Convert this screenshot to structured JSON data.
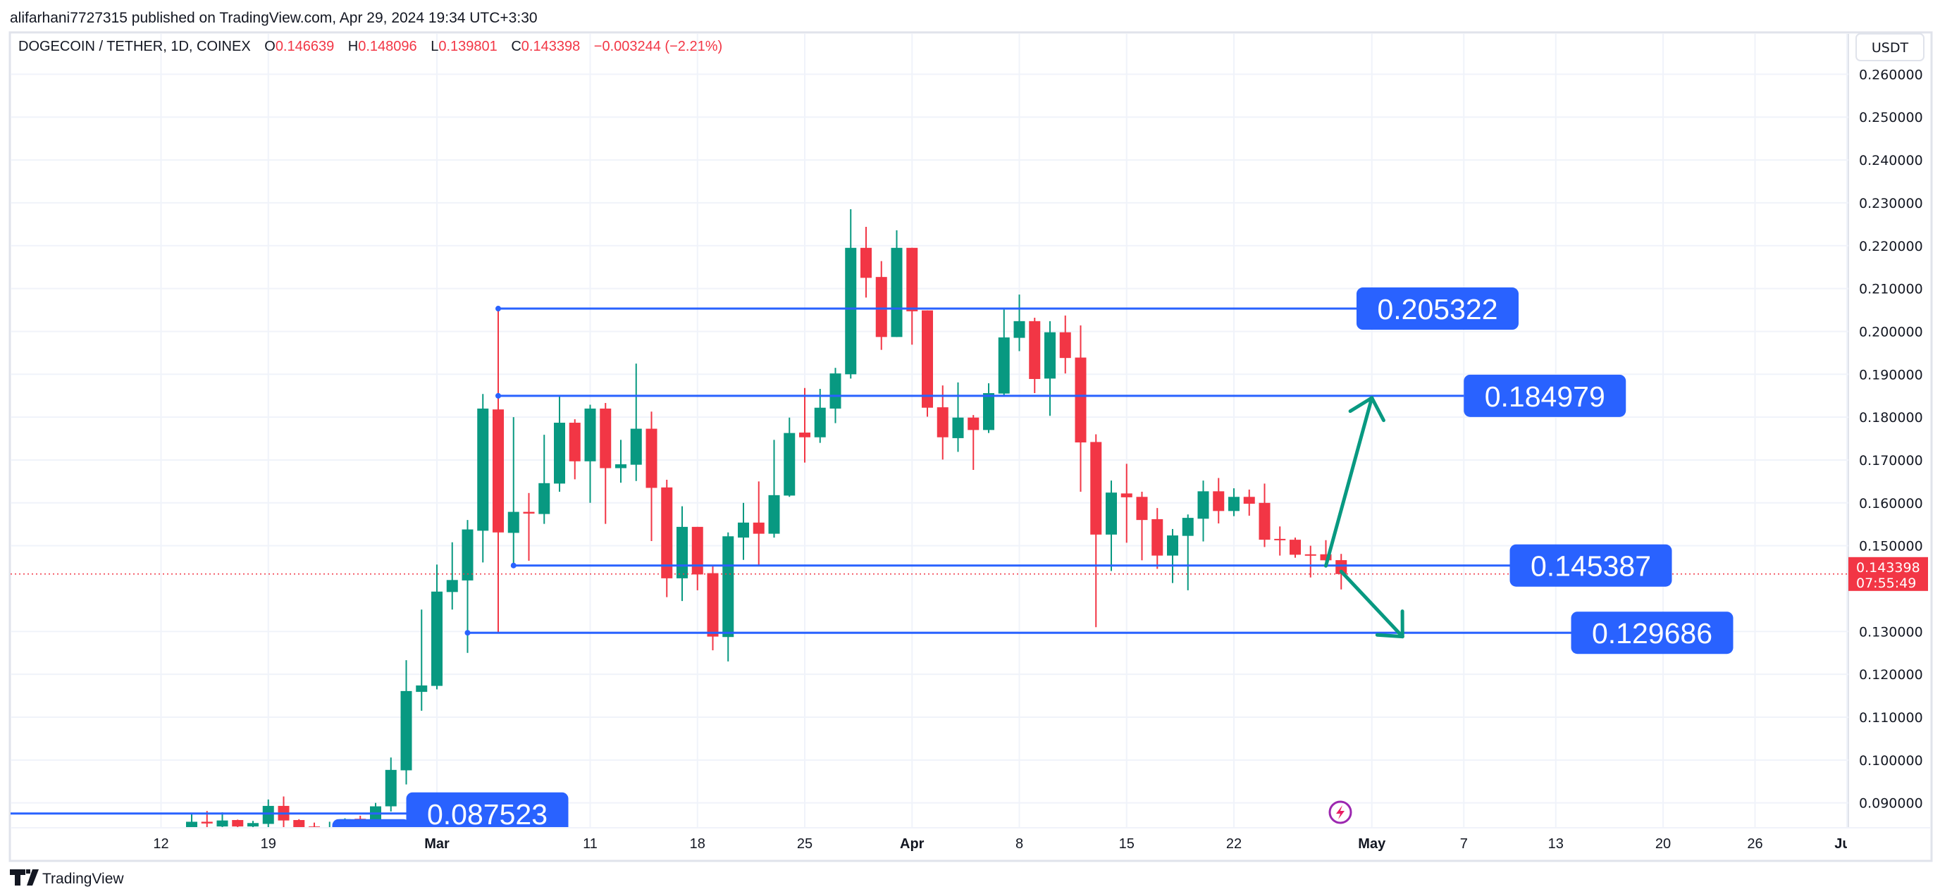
{
  "header": {
    "published": "alifarhani7727315 published on TradingView.com, Apr 29, 2024 19:34 UTC+3:30"
  },
  "legend": {
    "symbol": "DOGECOIN / TETHER, 1D, COINEX",
    "o_label": "O",
    "o": "0.146639",
    "h_label": "H",
    "h": "0.148096",
    "l_label": "L",
    "l": "0.139801",
    "c_label": "C",
    "c": "0.143398",
    "change": "−0.003244 (−2.21%)"
  },
  "currency_button": "USDT",
  "last_price": {
    "value": "0.143398",
    "countdown": "07:55:49",
    "price": 0.143398
  },
  "footer": {
    "brand": "TradingView"
  },
  "colors": {
    "up": "#089981",
    "down": "#f23645",
    "drawing": "#2962ff",
    "arrow": "#089981",
    "grid": "#f0f3fa"
  },
  "chart_data": {
    "type": "candlestick",
    "ylim": [
      0.083,
      0.265
    ],
    "xlim": [
      "2024-02-08",
      "2024-06-01"
    ],
    "grid": true,
    "y_ticks": [
      "0.260000",
      "0.250000",
      "0.240000",
      "0.230000",
      "0.220000",
      "0.210000",
      "0.200000",
      "0.190000",
      "0.180000",
      "0.170000",
      "0.160000",
      "0.150000",
      "0.130000",
      "0.120000",
      "0.110000",
      "0.100000",
      "0.090000"
    ],
    "x_ticks": [
      {
        "date": "2024-02-12",
        "label": "12"
      },
      {
        "date": "2024-02-19",
        "label": "19"
      },
      {
        "date": "2024-03-01",
        "label": "Mar",
        "bold": true
      },
      {
        "date": "2024-03-11",
        "label": "11"
      },
      {
        "date": "2024-03-18",
        "label": "18"
      },
      {
        "date": "2024-03-25",
        "label": "25"
      },
      {
        "date": "2024-04-01",
        "label": "Apr",
        "bold": true
      },
      {
        "date": "2024-04-08",
        "label": "8"
      },
      {
        "date": "2024-04-15",
        "label": "15"
      },
      {
        "date": "2024-04-22",
        "label": "22"
      },
      {
        "date": "2024-05-01",
        "label": "May",
        "bold": true
      },
      {
        "date": "2024-05-07",
        "label": "7"
      },
      {
        "date": "2024-05-13",
        "label": "13"
      },
      {
        "date": "2024-05-20",
        "label": "20"
      },
      {
        "date": "2024-05-26",
        "label": "26"
      },
      {
        "date": "2024-06-01",
        "label": "Jun",
        "bold": true
      }
    ],
    "columns": [
      "date",
      "open",
      "high",
      "low",
      "close"
    ],
    "candles": [
      [
        "2024-02-14",
        0.084,
        0.0876,
        0.0835,
        0.0856
      ],
      [
        "2024-02-15",
        0.0856,
        0.0881,
        0.083,
        0.0852
      ],
      [
        "2024-02-16",
        0.0845,
        0.0878,
        0.0835,
        0.0859
      ],
      [
        "2024-02-17",
        0.086,
        0.0861,
        0.083,
        0.0845
      ],
      [
        "2024-02-18",
        0.0845,
        0.0858,
        0.0838,
        0.0853
      ],
      [
        "2024-02-19",
        0.0851,
        0.0908,
        0.0835,
        0.0893
      ],
      [
        "2024-02-20",
        0.0893,
        0.0915,
        0.0836,
        0.0859
      ],
      [
        "2024-02-21",
        0.086,
        0.0862,
        0.082,
        0.0835
      ],
      [
        "2024-02-22",
        0.0845,
        0.0854,
        0.081,
        0.083
      ],
      [
        "2024-02-23",
        0.082,
        0.0856,
        0.081,
        0.083
      ],
      [
        "2024-02-24",
        0.083,
        0.0864,
        0.082,
        0.0862
      ],
      [
        "2024-02-25",
        0.0863,
        0.087,
        0.0853,
        0.0861
      ],
      [
        "2024-02-26",
        0.086,
        0.09,
        0.0845,
        0.0892
      ],
      [
        "2024-02-27",
        0.0892,
        0.1006,
        0.088,
        0.0977
      ],
      [
        "2024-02-28",
        0.0976,
        0.1233,
        0.0943,
        0.1161
      ],
      [
        "2024-02-29",
        0.1159,
        0.1351,
        0.1115,
        0.1174
      ],
      [
        "2024-03-01",
        0.1173,
        0.1456,
        0.1165,
        0.1393
      ],
      [
        "2024-03-02",
        0.1392,
        0.1508,
        0.1351,
        0.142
      ],
      [
        "2024-03-03",
        0.1419,
        0.156,
        0.125,
        0.1538
      ],
      [
        "2024-03-04",
        0.1535,
        0.1854,
        0.1461,
        0.182
      ],
      [
        "2024-03-05",
        0.1818,
        0.2053,
        0.1295,
        0.1531
      ],
      [
        "2024-03-06",
        0.153,
        0.18,
        0.1454,
        0.1579
      ],
      [
        "2024-03-07",
        0.1579,
        0.1623,
        0.1465,
        0.1575
      ],
      [
        "2024-03-08",
        0.1574,
        0.1759,
        0.1551,
        0.1646
      ],
      [
        "2024-03-09",
        0.1645,
        0.1849,
        0.1626,
        0.1787
      ],
      [
        "2024-03-10",
        0.1787,
        0.1795,
        0.1655,
        0.1697
      ],
      [
        "2024-03-11",
        0.1697,
        0.1829,
        0.16,
        0.182
      ],
      [
        "2024-03-12",
        0.182,
        0.1833,
        0.1551,
        0.1681
      ],
      [
        "2024-03-13",
        0.1681,
        0.1747,
        0.1647,
        0.169
      ],
      [
        "2024-03-14",
        0.1689,
        0.1925,
        0.1651,
        0.1773
      ],
      [
        "2024-03-15",
        0.1773,
        0.1813,
        0.1511,
        0.1635
      ],
      [
        "2024-03-16",
        0.1636,
        0.1654,
        0.138,
        0.1424
      ],
      [
        "2024-03-17",
        0.1424,
        0.1592,
        0.1371,
        0.1544
      ],
      [
        "2024-03-18",
        0.1544,
        0.1544,
        0.1396,
        0.1433
      ],
      [
        "2024-03-19",
        0.1436,
        0.1452,
        0.1256,
        0.1288
      ],
      [
        "2024-03-20",
        0.1287,
        0.1531,
        0.123,
        0.1522
      ],
      [
        "2024-03-21",
        0.1519,
        0.16,
        0.1467,
        0.1554
      ],
      [
        "2024-03-22",
        0.1554,
        0.165,
        0.1454,
        0.1528
      ],
      [
        "2024-03-23",
        0.1528,
        0.1747,
        0.1519,
        0.1618
      ],
      [
        "2024-03-24",
        0.1617,
        0.1799,
        0.1614,
        0.1763
      ],
      [
        "2024-03-25",
        0.1764,
        0.1868,
        0.1694,
        0.1753
      ],
      [
        "2024-03-26",
        0.1753,
        0.1866,
        0.174,
        0.1822
      ],
      [
        "2024-03-27",
        0.182,
        0.1915,
        0.1786,
        0.1902
      ],
      [
        "2024-03-28",
        0.19,
        0.2285,
        0.189,
        0.2195
      ],
      [
        "2024-03-29",
        0.2195,
        0.2244,
        0.2079,
        0.2125
      ],
      [
        "2024-03-30",
        0.2127,
        0.2164,
        0.1957,
        0.1987
      ],
      [
        "2024-03-31",
        0.1987,
        0.2236,
        0.1987,
        0.2195
      ],
      [
        "2024-04-01",
        0.2195,
        0.2195,
        0.1969,
        0.2047
      ],
      [
        "2024-04-02",
        0.2049,
        0.2049,
        0.1801,
        0.1822
      ],
      [
        "2024-04-03",
        0.1823,
        0.1874,
        0.1701,
        0.1753
      ],
      [
        "2024-04-04",
        0.1751,
        0.1881,
        0.1719,
        0.1799
      ],
      [
        "2024-04-05",
        0.1799,
        0.1805,
        0.1677,
        0.177
      ],
      [
        "2024-04-06",
        0.177,
        0.1879,
        0.1763,
        0.1856
      ],
      [
        "2024-04-07",
        0.1855,
        0.2052,
        0.1852,
        0.1986
      ],
      [
        "2024-04-08",
        0.1985,
        0.2086,
        0.1954,
        0.2024
      ],
      [
        "2024-04-09",
        0.2024,
        0.2032,
        0.1856,
        0.1889
      ],
      [
        "2024-04-10",
        0.189,
        0.2024,
        0.1803,
        0.1998
      ],
      [
        "2024-04-11",
        0.1998,
        0.2037,
        0.1902,
        0.1938
      ],
      [
        "2024-04-12",
        0.1939,
        0.2014,
        0.1626,
        0.1741
      ],
      [
        "2024-04-13",
        0.1742,
        0.176,
        0.131,
        0.1526
      ],
      [
        "2024-04-14",
        0.1526,
        0.1652,
        0.1441,
        0.1624
      ],
      [
        "2024-04-15",
        0.1622,
        0.1691,
        0.1507,
        0.1613
      ],
      [
        "2024-04-16",
        0.1614,
        0.1626,
        0.1466,
        0.156
      ],
      [
        "2024-04-17",
        0.1562,
        0.1588,
        0.1446,
        0.1477
      ],
      [
        "2024-04-18",
        0.1477,
        0.1539,
        0.1413,
        0.1524
      ],
      [
        "2024-04-19",
        0.1523,
        0.1573,
        0.1396,
        0.1565
      ],
      [
        "2024-04-20",
        0.1563,
        0.1652,
        0.151,
        0.1627
      ],
      [
        "2024-04-21",
        0.1627,
        0.1658,
        0.1552,
        0.1581
      ],
      [
        "2024-04-22",
        0.1581,
        0.1634,
        0.1569,
        0.1614
      ],
      [
        "2024-04-23",
        0.1614,
        0.1631,
        0.157,
        0.1598
      ],
      [
        "2024-04-24",
        0.16,
        0.1645,
        0.1497,
        0.1514
      ],
      [
        "2024-04-25",
        0.1516,
        0.1545,
        0.1477,
        0.1514
      ],
      [
        "2024-04-26",
        0.1514,
        0.1519,
        0.1472,
        0.1479
      ],
      [
        "2024-04-27",
        0.148,
        0.15,
        0.1426,
        0.1479
      ],
      [
        "2024-04-28",
        0.148,
        0.1513,
        0.1462,
        0.1466
      ],
      [
        "2024-04-29",
        0.146639,
        0.148096,
        0.139801,
        0.143398
      ]
    ],
    "annotations": {
      "levels": [
        {
          "label": "0.205322",
          "price": 0.205322,
          "from": "2024-03-05",
          "to": "2024-04-30",
          "anchor": true
        },
        {
          "label": "0.184979",
          "price": 0.184979,
          "from": "2024-03-05",
          "to": "2024-05-07",
          "anchor": true
        },
        {
          "label": "0.145387",
          "price": 0.145387,
          "from": "2024-03-06",
          "to": "2024-05-10",
          "anchor": true
        },
        {
          "label": "0.129686",
          "price": 0.129686,
          "from": "2024-03-03",
          "to": "2024-05-14",
          "anchor": true
        },
        {
          "label": "0.087523",
          "price": 0.087523,
          "from": "2024-02-07",
          "to": "2024-02-28",
          "anchor": false
        }
      ],
      "arrows": [
        {
          "from": [
            "2024-04-28",
            0.1453
          ],
          "to": [
            "2024-05-01",
            0.1845
          ],
          "direction": "up"
        },
        {
          "from": [
            "2024-04-29",
            0.144
          ],
          "to": [
            "2024-05-03",
            0.1288
          ],
          "direction": "down"
        }
      ]
    }
  }
}
